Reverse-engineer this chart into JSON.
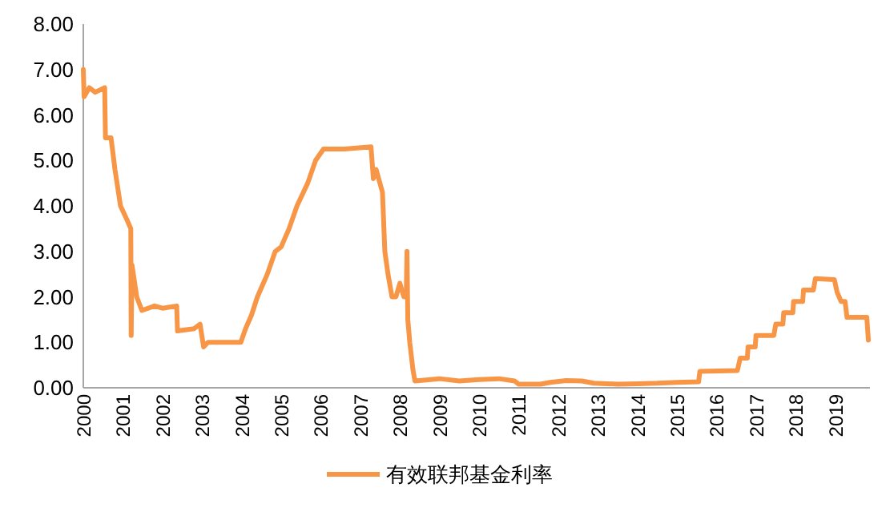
{
  "chart_data": {
    "type": "line",
    "legend": "bottom",
    "tick_labels": "xy",
    "xlim": [
      2000,
      2019.88
    ],
    "xticks": [
      2000,
      2001,
      2002,
      2003,
      2004,
      2005,
      2006,
      2007,
      2008,
      2009,
      2010,
      2011,
      2012,
      2013,
      2014,
      2015,
      2016,
      2017,
      2018,
      2019
    ],
    "ylim": [
      0,
      8
    ],
    "yticks": [
      {
        "value": 0,
        "label": "0.00"
      },
      {
        "value": 1,
        "label": "1.00"
      },
      {
        "value": 2,
        "label": "2.00"
      },
      {
        "value": 3,
        "label": "3.00"
      },
      {
        "value": 4,
        "label": "4.00"
      },
      {
        "value": 5,
        "label": "5.00"
      },
      {
        "value": 6,
        "label": "6.00"
      },
      {
        "value": 7,
        "label": "7.00"
      },
      {
        "value": 8,
        "label": "8.00"
      }
    ],
    "x": [
      2000.0,
      2000.02,
      2000.15,
      2000.3,
      2000.54,
      2000.56,
      2000.7,
      2000.8,
      2000.94,
      2001.1,
      2001.2,
      2001.21,
      2001.23,
      2001.35,
      2001.48,
      2001.8,
      2002.0,
      2002.36,
      2002.38,
      2002.8,
      2002.95,
      2003.04,
      2003.15,
      2003.98,
      2004.1,
      2004.25,
      2004.4,
      2004.55,
      2004.65,
      2004.85,
      2005.0,
      2005.2,
      2005.4,
      2005.67,
      2005.87,
      2006.07,
      2006.6,
      2007.27,
      2007.33,
      2007.4,
      2007.56,
      2007.62,
      2007.7,
      2007.8,
      2007.9,
      2008.0,
      2008.1,
      2008.16,
      2008.18,
      2008.2,
      2008.25,
      2008.33,
      2008.38,
      2009.0,
      2009.5,
      2010.0,
      2010.5,
      2010.9,
      2011.0,
      2011.55,
      2011.8,
      2012.2,
      2012.6,
      2012.9,
      2013.5,
      2014.0,
      2014.5,
      2015.0,
      2015.55,
      2015.58,
      2016.53,
      2016.6,
      2016.78,
      2016.8,
      2016.98,
      2017.0,
      2017.45,
      2017.5,
      2017.68,
      2017.7,
      2017.93,
      2017.95,
      2018.18,
      2018.2,
      2018.45,
      2018.5,
      2018.98,
      2019.05,
      2019.15,
      2019.25,
      2019.3,
      2019.8,
      2019.84
    ],
    "series": [
      {
        "name": "有效联邦基金利率",
        "color": "#f79646",
        "values": [
          7.0,
          6.4,
          6.6,
          6.5,
          6.6,
          5.5,
          5.5,
          4.8,
          4.0,
          3.7,
          3.5,
          1.15,
          2.7,
          2.0,
          1.7,
          1.8,
          1.75,
          1.8,
          1.25,
          1.3,
          1.4,
          0.9,
          1.0,
          1.0,
          1.3,
          1.6,
          2.0,
          2.3,
          2.5,
          3.0,
          3.1,
          3.5,
          4.0,
          4.5,
          5.0,
          5.25,
          5.25,
          5.3,
          4.6,
          4.8,
          4.3,
          3.0,
          2.5,
          2.0,
          2.0,
          2.3,
          2.0,
          2.0,
          3.0,
          1.5,
          1.0,
          0.4,
          0.15,
          0.2,
          0.15,
          0.18,
          0.2,
          0.15,
          0.08,
          0.08,
          0.12,
          0.16,
          0.15,
          0.1,
          0.08,
          0.09,
          0.1,
          0.12,
          0.13,
          0.36,
          0.38,
          0.65,
          0.65,
          0.9,
          0.9,
          1.15,
          1.15,
          1.4,
          1.4,
          1.65,
          1.65,
          1.9,
          1.9,
          2.15,
          2.15,
          2.4,
          2.38,
          2.1,
          1.9,
          1.9,
          1.55,
          1.55,
          1.05
        ]
      }
    ]
  }
}
